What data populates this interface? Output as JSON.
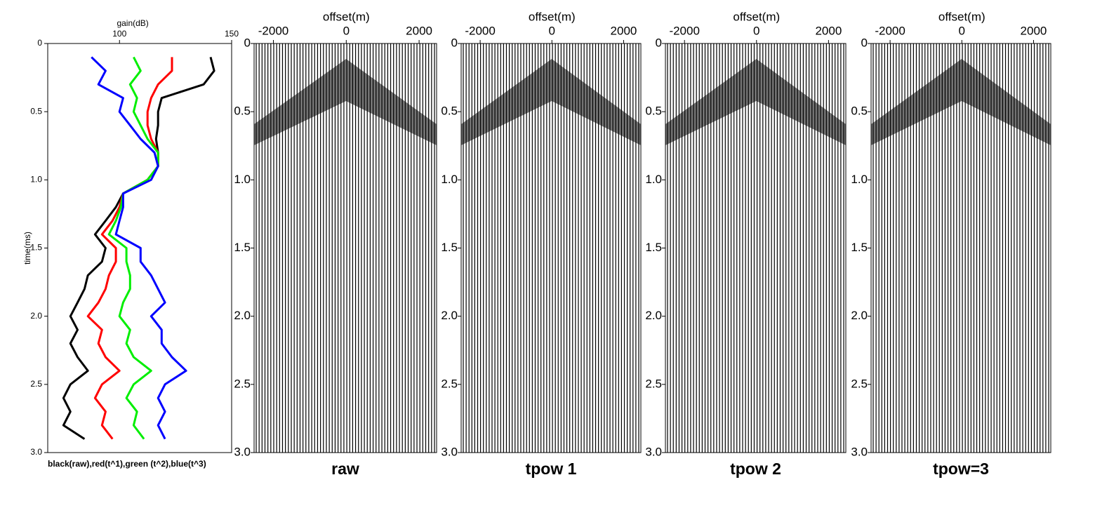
{
  "chart_data": [
    {
      "type": "line",
      "xlabel": "gain(dB)",
      "ylabel": "time(ms)",
      "caption": "black(raw),red(t^1),green (t^2),blue(t^3)",
      "xlim": [
        68,
        150
      ],
      "xticks": [
        100,
        150
      ],
      "ylim": [
        0,
        3
      ],
      "yticks": [
        0,
        {
          "value": 0.5,
          "label": "0.5"
        },
        {
          "value": 1,
          "label": "1.0"
        },
        {
          "value": 1.5,
          "label": "1.5"
        },
        {
          "value": 2,
          "label": "2.0"
        },
        {
          "value": 2.5,
          "label": "2.5"
        },
        {
          "value": 3,
          "label": "3.0"
        }
      ],
      "y": [
        0.1,
        0.2,
        0.3,
        0.4,
        0.5,
        0.6,
        0.7,
        0.8,
        0.9,
        1.0,
        1.1,
        1.2,
        1.3,
        1.4,
        1.5,
        1.6,
        1.7,
        1.8,
        1.9,
        2.0,
        2.1,
        2.2,
        2.3,
        2.4,
        2.5,
        2.6,
        2.7,
        2.8,
        2.9
      ],
      "series": [
        {
          "color": "#000000",
          "values": [
            140.6,
            142.2,
            137.5,
            118.8,
            117.2,
            117.2,
            116.3,
            117.2,
            117.2,
            112.5,
            101.6,
            98.4,
            93.8,
            89.1,
            93.8,
            92.2,
            85.9,
            84.4,
            81.3,
            78.1,
            81.3,
            78.1,
            81.3,
            85.9,
            78.1,
            75,
            78.1,
            75,
            84.4
          ]
        },
        {
          "color": "#ff0000",
          "values": [
            123.4,
            123.4,
            117.2,
            114.1,
            112.5,
            112.5,
            114.1,
            117.2,
            117.2,
            112.5,
            101.6,
            100,
            96.9,
            92.2,
            98.4,
            98.4,
            95.3,
            93.8,
            90.6,
            85.9,
            92.2,
            90.6,
            93.8,
            100,
            92.2,
            89.1,
            93.8,
            92.2,
            96.9
          ]
        },
        {
          "color": "#00ee00",
          "values": [
            106.3,
            109.4,
            104.7,
            107.8,
            106.3,
            109.4,
            112.5,
            117.2,
            117.2,
            112.5,
            101.6,
            100.6,
            98.4,
            95.3,
            103.1,
            103.1,
            104.7,
            104.7,
            101.6,
            100,
            104.7,
            103.1,
            106.3,
            114.1,
            106.3,
            103.1,
            107.8,
            106.3,
            110.9
          ]
        },
        {
          "color": "#0000ff",
          "values": [
            87.5,
            93.8,
            90.6,
            101.6,
            100,
            104.7,
            109.4,
            115.6,
            117.2,
            114.1,
            101.6,
            101.6,
            100,
            98.4,
            109.4,
            109.4,
            114.1,
            117.2,
            120.3,
            114.1,
            118.8,
            118.8,
            123.4,
            129.7,
            120.3,
            117.2,
            120.3,
            117.2,
            120.3
          ]
        }
      ]
    },
    {
      "type": "seismic",
      "title": "raw",
      "xlabel": "offset(m)",
      "xlim": [
        -2530,
        2480
      ],
      "xticks": [
        -2000,
        0,
        2000
      ],
      "ylim": [
        0,
        3
      ],
      "yticks": [
        0,
        {
          "value": 0.5,
          "label": "0.5"
        },
        {
          "value": 1,
          "label": "1.0"
        },
        {
          "value": 1.5,
          "label": "1.5"
        },
        {
          "value": 2,
          "label": "2.0"
        },
        {
          "value": 2.5,
          "label": "2.5"
        },
        {
          "value": 3,
          "label": "3.0"
        }
      ]
    },
    {
      "type": "seismic",
      "title": "tpow 1",
      "xlabel": "offset(m)",
      "xlim": [
        -2530,
        2480
      ],
      "xticks": [
        -2000,
        0,
        2000
      ],
      "ylim": [
        0,
        3
      ],
      "yticks": [
        0,
        {
          "value": 0.5,
          "label": "0.5"
        },
        {
          "value": 1,
          "label": "1.0"
        },
        {
          "value": 1.5,
          "label": "1.5"
        },
        {
          "value": 2,
          "label": "2.0"
        },
        {
          "value": 2.5,
          "label": "2.5"
        },
        {
          "value": 3,
          "label": "3.0"
        }
      ]
    },
    {
      "type": "seismic",
      "title": "tpow 2",
      "xlabel": "offset(m)",
      "xlim": [
        -2530,
        2480
      ],
      "xticks": [
        -2000,
        0,
        2000
      ],
      "ylim": [
        0,
        3
      ],
      "yticks": [
        0,
        {
          "value": 0.5,
          "label": "0.5"
        },
        {
          "value": 1,
          "label": "1.0"
        },
        {
          "value": 1.5,
          "label": "1.5"
        },
        {
          "value": 2,
          "label": "2.0"
        },
        {
          "value": 2.5,
          "label": "2.5"
        },
        {
          "value": 3,
          "label": "3.0"
        }
      ]
    },
    {
      "type": "seismic",
      "title": "tpow=3",
      "xlabel": "offset(m)",
      "xlim": [
        -2530,
        2480
      ],
      "xticks": [
        -2000,
        0,
        2000
      ],
      "ylim": [
        0,
        3
      ],
      "yticks": [
        0,
        {
          "value": 0.5,
          "label": "0.5"
        },
        {
          "value": 1,
          "label": "1.0"
        },
        {
          "value": 1.5,
          "label": "1.5"
        },
        {
          "value": 2,
          "label": "2.0"
        },
        {
          "value": 2.5,
          "label": "2.5"
        },
        {
          "value": 3,
          "label": "3.0"
        }
      ]
    }
  ]
}
